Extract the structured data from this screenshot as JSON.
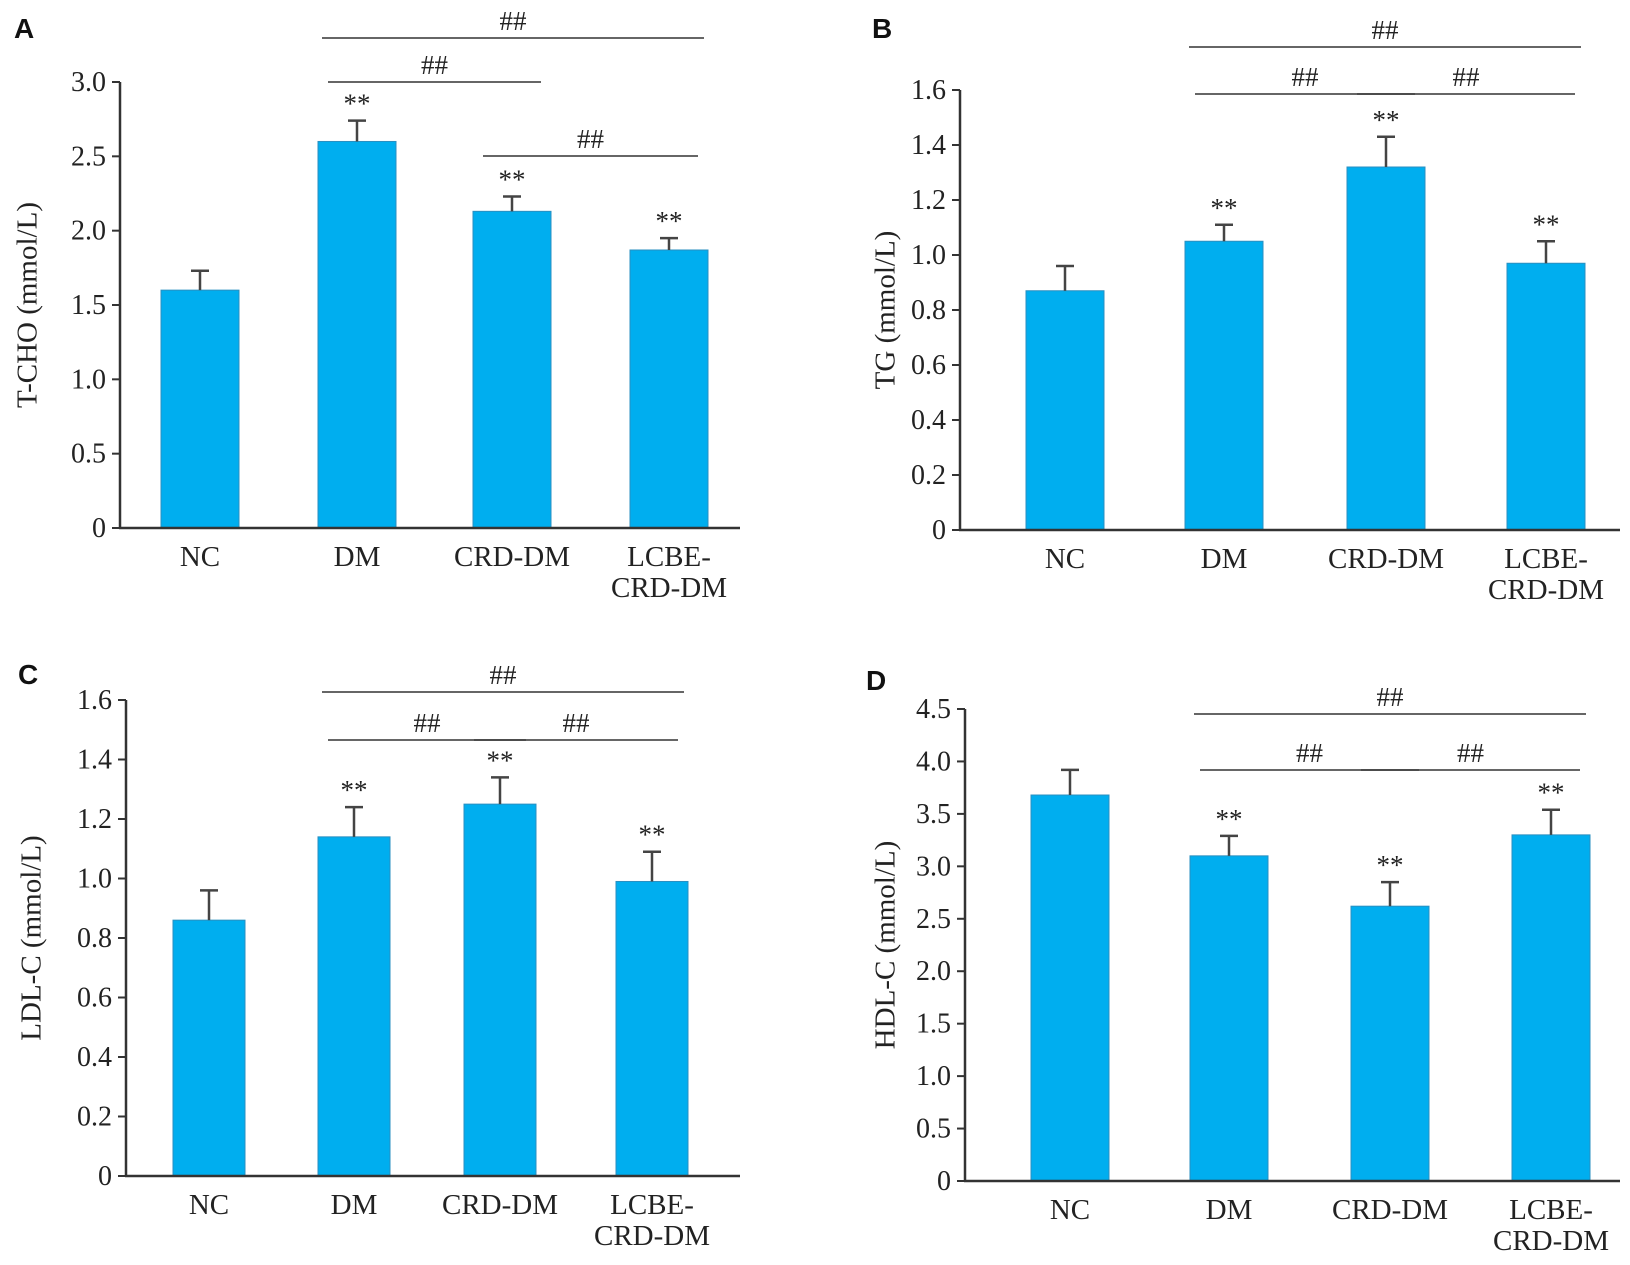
{
  "colors": {
    "bar": "#00AEEF",
    "bar_stroke": "#2a8fc0",
    "axis": "#333333",
    "error": "#444444"
  },
  "chart_data": [
    {
      "panel": "A",
      "type": "bar",
      "categories": [
        [
          "NC"
        ],
        [
          "DM"
        ],
        [
          "CRD-DM"
        ],
        [
          "LCBE-",
          "CRD-DM"
        ]
      ],
      "values": [
        1.6,
        2.6,
        2.13,
        1.87
      ],
      "errors": [
        0.13,
        0.14,
        0.1,
        0.08
      ],
      "ylabel": "T-CHO (mmol/L)",
      "ylim": [
        0,
        3.0
      ],
      "yticks": [
        0,
        0.5,
        1.0,
        1.5,
        2.0,
        2.5,
        3.0
      ],
      "ytick_labels": [
        "0",
        "0.5",
        "1.0",
        "1.5",
        "2.0",
        "2.5",
        "3.0"
      ],
      "stars": [
        "",
        "**",
        "**",
        "**"
      ],
      "comparisons": [
        {
          "from": 1,
          "to": 2,
          "label": "##"
        },
        {
          "from": 2,
          "to": 3,
          "label": "##"
        },
        {
          "from": 1,
          "to": 3,
          "label": "##"
        }
      ]
    },
    {
      "panel": "B",
      "type": "bar",
      "categories": [
        [
          "NC"
        ],
        [
          "DM"
        ],
        [
          "CRD-DM"
        ],
        [
          "LCBE-",
          "CRD-DM"
        ]
      ],
      "values": [
        0.87,
        1.05,
        1.32,
        0.97
      ],
      "errors": [
        0.09,
        0.06,
        0.11,
        0.08
      ],
      "ylabel": "TG (mmol/L)",
      "ylim": [
        0,
        1.6
      ],
      "yticks": [
        0,
        0.2,
        0.4,
        0.6,
        0.8,
        1.0,
        1.2,
        1.4,
        1.6
      ],
      "ytick_labels": [
        "0",
        "0.2",
        "0.4",
        "0.6",
        "0.8",
        "1.0",
        "1.2",
        "1.4",
        "1.6"
      ],
      "stars": [
        "",
        "**",
        "**",
        "**"
      ],
      "comparisons": [
        {
          "from": 1,
          "to": 2,
          "label": "##"
        },
        {
          "from": 2,
          "to": 3,
          "label": "##"
        },
        {
          "from": 1,
          "to": 3,
          "label": "##"
        }
      ]
    },
    {
      "panel": "C",
      "type": "bar",
      "categories": [
        [
          "NC"
        ],
        [
          "DM"
        ],
        [
          "CRD-DM"
        ],
        [
          "LCBE-",
          "CRD-DM"
        ]
      ],
      "values": [
        0.86,
        1.14,
        1.25,
        0.99
      ],
      "errors": [
        0.1,
        0.1,
        0.09,
        0.1
      ],
      "ylabel": "LDL-C (mmol/L)",
      "ylim": [
        0,
        1.6
      ],
      "yticks": [
        0,
        0.2,
        0.4,
        0.6,
        0.8,
        1.0,
        1.2,
        1.4,
        1.6
      ],
      "ytick_labels": [
        "0",
        "0.2",
        "0.4",
        "0.6",
        "0.8",
        "1.0",
        "1.2",
        "1.4",
        "1.6"
      ],
      "stars": [
        "",
        "**",
        "**",
        "**"
      ],
      "comparisons": [
        {
          "from": 1,
          "to": 2,
          "label": "##"
        },
        {
          "from": 2,
          "to": 3,
          "label": "##"
        },
        {
          "from": 1,
          "to": 3,
          "label": "##"
        }
      ]
    },
    {
      "panel": "D",
      "type": "bar",
      "categories": [
        [
          "NC"
        ],
        [
          "DM"
        ],
        [
          "CRD-DM"
        ],
        [
          "LCBE-",
          "CRD-DM"
        ]
      ],
      "values": [
        3.68,
        3.1,
        2.62,
        3.3
      ],
      "errors": [
        0.24,
        0.19,
        0.23,
        0.24
      ],
      "ylabel": "HDL-C (mmol/L)",
      "ylim": [
        0,
        4.5
      ],
      "yticks": [
        0,
        0.5,
        1.0,
        1.5,
        2.0,
        2.5,
        3.0,
        3.5,
        4.0,
        4.5
      ],
      "ytick_labels": [
        "0",
        "0.5",
        "1.0",
        "1.5",
        "2.0",
        "2.5",
        "3.0",
        "3.5",
        "4.0",
        "4.5"
      ],
      "stars": [
        "",
        "**",
        "**",
        "**"
      ],
      "comparisons": [
        {
          "from": 1,
          "to": 2,
          "label": "##"
        },
        {
          "from": 2,
          "to": 3,
          "label": "##"
        },
        {
          "from": 1,
          "to": 3,
          "label": "##"
        }
      ]
    }
  ]
}
